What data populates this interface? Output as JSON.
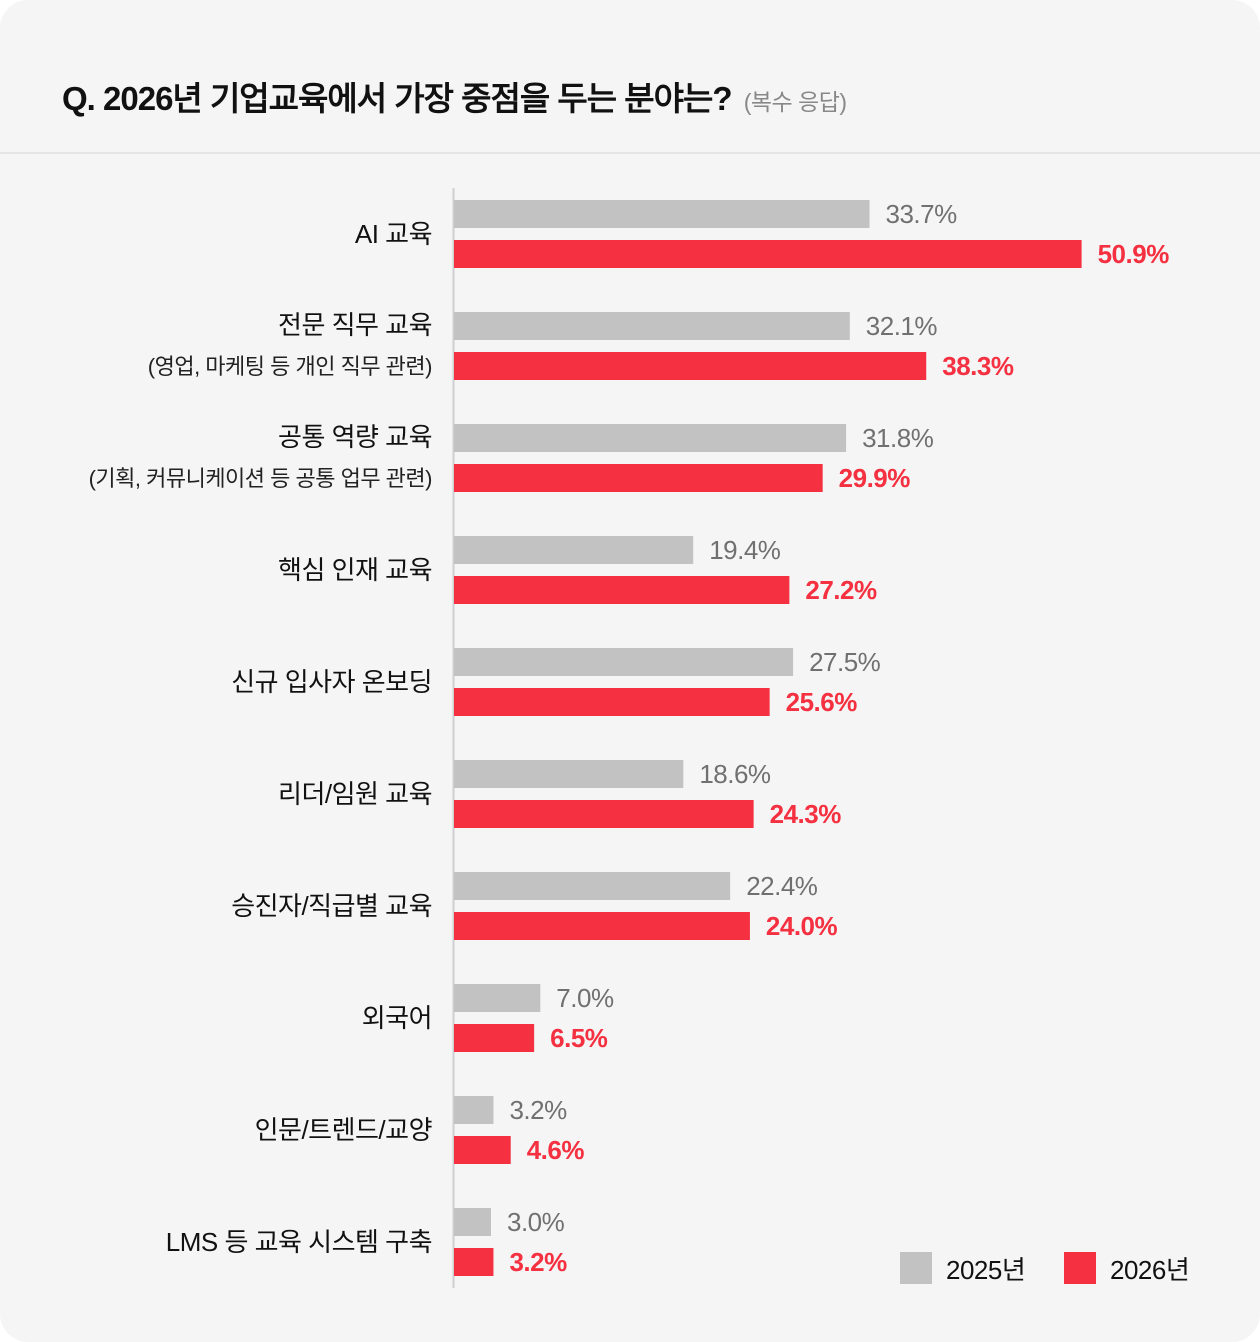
{
  "title": {
    "main": "Q. 2026년 기업교육에서 가장 중점을 두는 분야는?",
    "note": "(복수 응답)"
  },
  "colors": {
    "s2025": "#c2c2c2",
    "s2026": "#f53040",
    "label2025": "#707070",
    "label2026": "#f53040",
    "axis": "#cfcfcf"
  },
  "chart_data": {
    "type": "bar",
    "orientation": "horizontal",
    "categories": [
      "AI 교육",
      "전문 직무 교육|(영업, 마케팅 등 개인 직무 관련)",
      "공통 역량 교육|(기획, 커뮤니케이션 등 공통 업무 관련)",
      "핵심 인재 교육",
      "신규 입사자 온보딩",
      "리더/임원 교육",
      "승진자/직급별 교육",
      "외국어",
      "인문/트렌드/교양",
      "LMS 등 교육 시스템 구축"
    ],
    "series": [
      {
        "name": "2025년",
        "values": [
          33.7,
          32.1,
          31.8,
          19.4,
          27.5,
          18.6,
          22.4,
          7.0,
          3.2,
          3.0
        ],
        "labels": [
          "33.7%",
          "32.1%",
          "31.8%",
          "19.4%",
          "27.5%",
          "18.6%",
          "22.4%",
          "7.0%",
          "3.2%",
          "3.0%"
        ]
      },
      {
        "name": "2026년",
        "values": [
          50.9,
          38.3,
          29.9,
          27.2,
          25.6,
          24.3,
          24.0,
          6.5,
          4.6,
          3.2
        ],
        "labels": [
          "50.9%",
          "38.3%",
          "29.9%",
          "27.2%",
          "25.6%",
          "24.3%",
          "24.0%",
          "6.5%",
          "4.6%",
          "3.2%"
        ]
      }
    ],
    "legend_position": "bottom-right"
  }
}
